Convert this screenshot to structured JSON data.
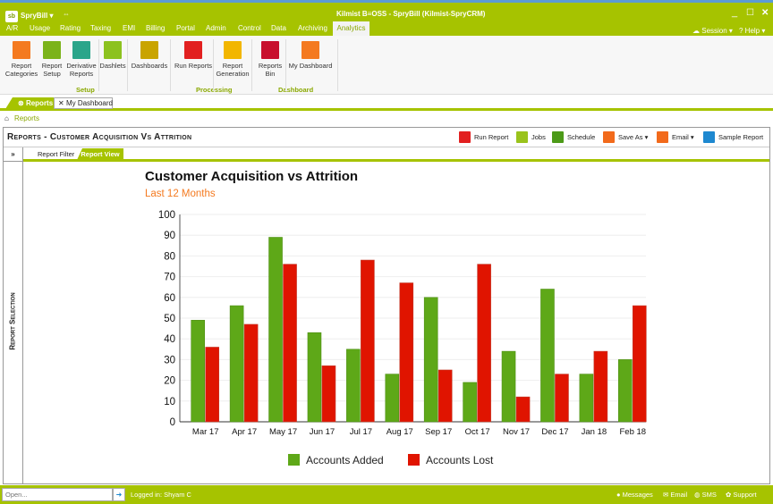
{
  "app": {
    "logo": "sb",
    "name": "SpryBill",
    "title": "Kilmist B≡OSS - SpryBill (Kilmist-SpryCRM)",
    "session": "Session",
    "help": "Help"
  },
  "menu": [
    "A/R",
    "Usage",
    "Rating",
    "Taxing",
    "EMI",
    "Billing",
    "Portal",
    "Admin",
    "Control",
    "Data",
    "Archiving",
    "Analytics"
  ],
  "ribbon": {
    "buttons": [
      {
        "label": "Report\nCategories",
        "color": "#f47a20"
      },
      {
        "label": "Report\nSetup",
        "color": "#7bb31a"
      },
      {
        "label": "Derivative\nReports",
        "color": "#2aa58a"
      },
      {
        "label": "Dashlets",
        "color": "#8cc21f"
      },
      {
        "label": "Dashboards",
        "color": "#c9a400"
      },
      {
        "label": "Run Reports",
        "color": "#e22020"
      },
      {
        "label": "Report\nGeneration",
        "color": "#f2b600"
      },
      {
        "label": "Reports\nBin",
        "color": "#c8102e"
      },
      {
        "label": "My Dashboard",
        "color": "#f47a20"
      }
    ],
    "groups": [
      "Setup",
      "Processing",
      "Dashboard"
    ]
  },
  "doctabs": [
    "Reports",
    "My Dashboard"
  ],
  "breadcrumb": "Reports",
  "panel": {
    "title": "Reports - Customer Acquisition Vs Attrition",
    "toolbar": [
      {
        "label": "Run Report",
        "color": "#e22020"
      },
      {
        "label": "Jobs",
        "color": "#9ac31c"
      },
      {
        "label": "Schedule",
        "color": "#4c9a18"
      },
      {
        "label": "Save As ▾",
        "color": "#f26a1b"
      },
      {
        "label": "Email ▾",
        "color": "#f26a1b"
      },
      {
        "label": "Sample Report",
        "color": "#1e88d0"
      }
    ],
    "side_label": "Report Selection",
    "expand": "»",
    "tabs": [
      "Report Filter",
      "Report View"
    ]
  },
  "chart_data": {
    "type": "bar",
    "title": "Customer Acquisition vs Attrition",
    "subtitle": "Last 12 Months",
    "categories": [
      "Mar 17",
      "Apr 17",
      "May 17",
      "Jun 17",
      "Jul 17",
      "Aug 17",
      "Sep 17",
      "Oct 17",
      "Nov 17",
      "Dec 17",
      "Jan 18",
      "Feb 18"
    ],
    "series": [
      {
        "name": "Accounts Added",
        "color": "#5ea818",
        "values": [
          49,
          56,
          89,
          43,
          35,
          23,
          60,
          19,
          34,
          64,
          23,
          30
        ]
      },
      {
        "name": "Accounts Lost",
        "color": "#e01400",
        "values": [
          36,
          47,
          76,
          27,
          78,
          67,
          25,
          76,
          12,
          23,
          34,
          56
        ]
      }
    ],
    "ylim": [
      0,
      100
    ],
    "yticks": [
      0,
      10,
      20,
      30,
      40,
      50,
      60,
      70,
      80,
      90,
      100
    ],
    "grid": true,
    "legend": "bottom"
  },
  "status": {
    "open_placeholder": "Open...",
    "logged_in": "Logged in: Shyam C",
    "messages": "Messages",
    "email": "Email",
    "sms": "SMS",
    "support": "Support"
  }
}
